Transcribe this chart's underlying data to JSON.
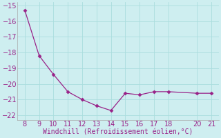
{
  "x": [
    8,
    9,
    10,
    11,
    12,
    13,
    14,
    15,
    16,
    17,
    18,
    20,
    21
  ],
  "y": [
    -15.3,
    -18.2,
    -19.4,
    -20.5,
    -21.0,
    -21.4,
    -21.7,
    -20.6,
    -20.7,
    -20.5,
    -20.5,
    -20.6,
    -20.6
  ],
  "line_color": "#992288",
  "marker": "D",
  "marker_size": 2.5,
  "line_width": 0.9,
  "xlabel": "Windchill (Refroidissement éolien,°C)",
  "xlabel_fontsize": 7,
  "tick_fontsize": 7,
  "xlim": [
    7.5,
    21.5
  ],
  "ylim": [
    -22.3,
    -14.8
  ],
  "yticks": [
    -22,
    -21,
    -20,
    -19,
    -18,
    -17,
    -16,
    -15
  ],
  "xticks": [
    8,
    9,
    10,
    11,
    12,
    13,
    14,
    15,
    16,
    17,
    18,
    20,
    21
  ],
  "background_color": "#ceeef0",
  "grid_color": "#aadddd",
  "spine_color": "#aaaaaa",
  "tick_color": "#992288",
  "label_color": "#992288",
  "fig_width": 3.2,
  "fig_height": 2.0,
  "dpi": 100
}
